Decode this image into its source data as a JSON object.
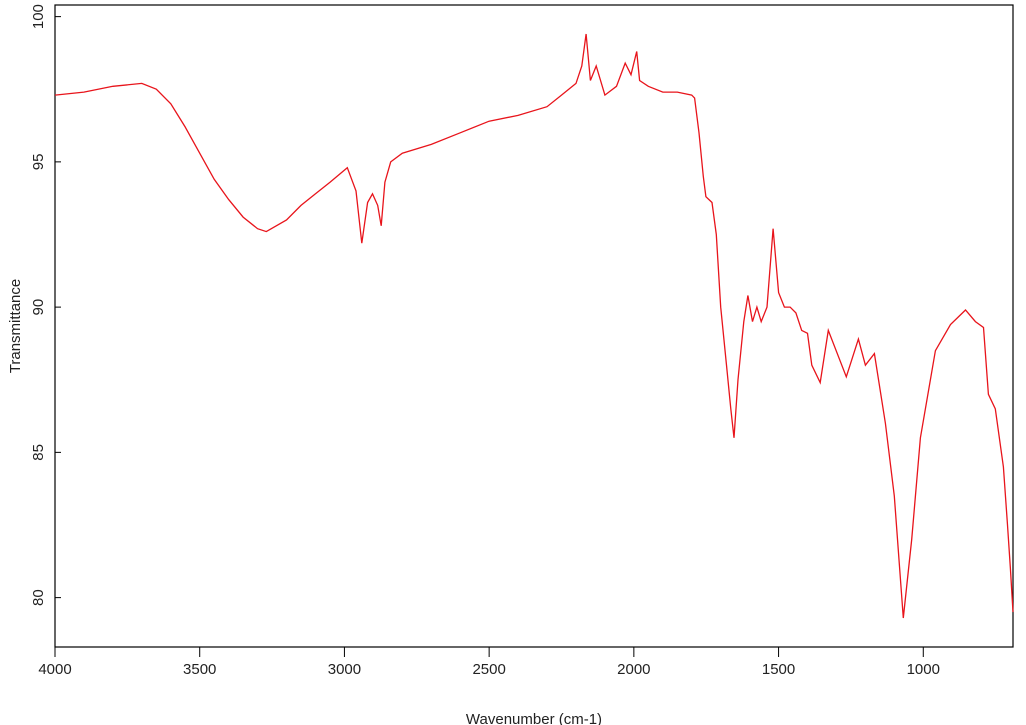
{
  "chart_data": {
    "type": "line",
    "title": null,
    "xlabel": "Wavenumber (cm-1)",
    "ylabel": "Transmittance",
    "color": "#e8141b",
    "xlim": [
      4000,
      690
    ],
    "ylim": [
      78.3,
      100.4
    ],
    "xticks": [
      4000,
      3500,
      3000,
      2500,
      2000,
      1500,
      1000
    ],
    "yticks": [
      80,
      85,
      90,
      95,
      100
    ],
    "grid": false,
    "x": [
      4000,
      3900,
      3800,
      3700,
      3650,
      3600,
      3550,
      3500,
      3450,
      3400,
      3350,
      3300,
      3270,
      3200,
      3150,
      3100,
      3050,
      2990,
      2960,
      2940,
      2920,
      2903,
      2885,
      2873,
      2860,
      2840,
      2800,
      2700,
      2600,
      2500,
      2400,
      2300,
      2250,
      2200,
      2180,
      2165,
      2150,
      2130,
      2100,
      2060,
      2030,
      2010,
      1990,
      1980,
      1950,
      1900,
      1850,
      1800,
      1790,
      1775,
      1760,
      1751,
      1730,
      1715,
      1700,
      1680,
      1665,
      1654,
      1640,
      1620,
      1606,
      1590,
      1575,
      1560,
      1540,
      1519,
      1500,
      1480,
      1460,
      1440,
      1420,
      1400,
      1385,
      1356,
      1328,
      1266,
      1224,
      1200,
      1169,
      1131,
      1100,
      1069,
      1040,
      1010,
      958,
      906,
      854,
      820,
      792,
      775,
      751,
      723,
      709,
      699,
      690
    ],
    "values": [
      97.3,
      97.4,
      97.6,
      97.7,
      97.5,
      97.0,
      96.2,
      95.3,
      94.4,
      93.7,
      93.1,
      92.7,
      92.6,
      93.0,
      93.5,
      93.9,
      94.3,
      94.8,
      94.0,
      92.2,
      93.6,
      93.9,
      93.5,
      92.8,
      94.3,
      95.0,
      95.3,
      95.6,
      96.0,
      96.4,
      96.6,
      96.9,
      97.3,
      97.7,
      98.3,
      99.4,
      97.8,
      98.3,
      97.3,
      97.6,
      98.4,
      98.0,
      98.8,
      97.8,
      97.6,
      97.4,
      97.4,
      97.3,
      97.2,
      96.0,
      94.5,
      93.8,
      93.6,
      92.5,
      90.0,
      88.0,
      86.5,
      85.5,
      87.5,
      89.5,
      90.4,
      89.5,
      90.0,
      89.5,
      90.0,
      92.7,
      90.5,
      90.0,
      90.0,
      89.8,
      89.2,
      89.1,
      88.0,
      87.4,
      89.2,
      87.6,
      88.9,
      88.0,
      88.4,
      86.0,
      83.5,
      79.3,
      82.0,
      85.5,
      88.5,
      89.4,
      89.9,
      89.5,
      89.3,
      87.0,
      86.5,
      84.5,
      82.5,
      81.0,
      79.5
    ]
  }
}
